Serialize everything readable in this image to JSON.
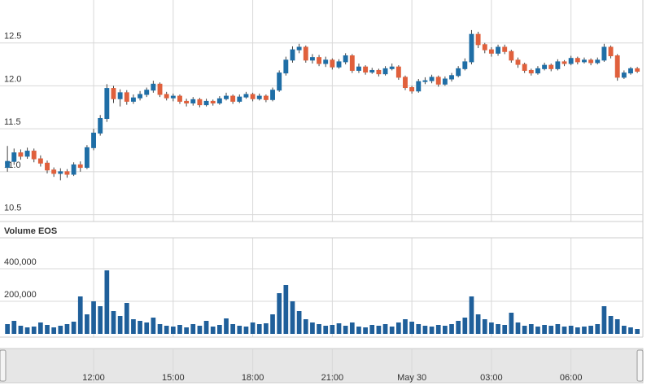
{
  "chart_data": {
    "type": "candlestick",
    "volume_title": "Volume EOS",
    "x": [
      8.75,
      9,
      9.25,
      9.5,
      9.75,
      10,
      10.25,
      10.5,
      10.75,
      11,
      11.25,
      11.5,
      11.75,
      12,
      12.25,
      12.5,
      12.75,
      13,
      13.25,
      13.5,
      13.75,
      14,
      14.25,
      14.5,
      14.75,
      15,
      15.25,
      15.5,
      15.75,
      16,
      16.25,
      16.5,
      16.75,
      17,
      17.25,
      17.5,
      17.75,
      18,
      18.25,
      18.5,
      18.75,
      19,
      19.25,
      19.5,
      19.75,
      20,
      20.25,
      20.5,
      20.75,
      21,
      21.25,
      21.5,
      21.75,
      22,
      22.25,
      22.5,
      22.75,
      23,
      23.25,
      23.5,
      23.75,
      24,
      24.25,
      24.5,
      24.75,
      25,
      25.25,
      25.5,
      25.75,
      26,
      26.25,
      26.5,
      26.75,
      27,
      27.25,
      27.5,
      27.75,
      28,
      28.25,
      28.5,
      28.75,
      29,
      29.25,
      29.5,
      29.75,
      30,
      30.25,
      30.5,
      30.75,
      31,
      31.25,
      31.5,
      31.75,
      32,
      32.25,
      32.5
    ],
    "open": [
      11.05,
      11.12,
      11.22,
      11.18,
      11.24,
      11.15,
      11.1,
      11.02,
      10.98,
      11.0,
      10.97,
      11.08,
      11.05,
      11.28,
      11.45,
      11.62,
      11.97,
      11.85,
      11.92,
      11.82,
      11.86,
      11.9,
      11.95,
      12.02,
      11.9,
      11.86,
      11.88,
      11.82,
      11.8,
      11.84,
      11.78,
      11.82,
      11.8,
      11.85,
      11.88,
      11.82,
      11.87,
      11.9,
      11.85,
      11.88,
      11.84,
      11.95,
      12.15,
      12.3,
      12.42,
      12.45,
      12.3,
      12.33,
      12.26,
      12.3,
      12.22,
      12.28,
      12.35,
      12.18,
      12.22,
      12.16,
      12.18,
      12.14,
      12.2,
      12.22,
      12.1,
      11.98,
      11.94,
      12.05,
      12.06,
      12.1,
      12.02,
      12.08,
      12.12,
      12.2,
      12.28,
      12.6,
      12.48,
      12.42,
      12.38,
      12.45,
      12.4,
      12.3,
      12.25,
      12.18,
      12.15,
      12.2,
      12.24,
      12.2,
      12.28,
      12.26,
      12.32,
      12.28,
      12.3,
      12.27,
      12.3,
      12.45,
      12.35,
      12.1,
      12.15,
      12.2
    ],
    "high": [
      11.3,
      11.27,
      11.26,
      11.28,
      11.27,
      11.19,
      11.13,
      11.05,
      11.04,
      11.03,
      11.11,
      11.12,
      11.31,
      11.5,
      11.66,
      12.02,
      12.0,
      11.96,
      11.95,
      11.9,
      11.94,
      11.98,
      12.06,
      12.04,
      11.93,
      11.91,
      11.9,
      11.85,
      11.87,
      11.86,
      11.85,
      11.84,
      11.88,
      11.92,
      11.9,
      11.9,
      11.93,
      11.92,
      11.91,
      11.9,
      11.98,
      12.18,
      12.34,
      12.46,
      12.49,
      12.47,
      12.37,
      12.36,
      12.34,
      12.32,
      12.31,
      12.38,
      12.37,
      12.26,
      12.24,
      12.21,
      12.2,
      12.23,
      12.26,
      12.24,
      12.12,
      12.0,
      12.08,
      12.1,
      12.13,
      12.12,
      12.11,
      12.15,
      12.23,
      12.32,
      12.65,
      12.63,
      12.5,
      12.45,
      12.48,
      12.48,
      12.42,
      12.33,
      12.27,
      12.2,
      12.23,
      12.27,
      12.26,
      12.31,
      12.3,
      12.35,
      12.34,
      12.33,
      12.32,
      12.33,
      12.49,
      12.47,
      12.37,
      12.18,
      12.22,
      12.22
    ],
    "low": [
      11.0,
      11.08,
      11.14,
      11.15,
      11.11,
      11.06,
      10.98,
      10.94,
      10.9,
      10.93,
      10.95,
      11.0,
      11.03,
      11.25,
      11.42,
      11.58,
      11.8,
      11.76,
      11.78,
      11.79,
      11.83,
      11.87,
      11.92,
      11.87,
      11.83,
      11.82,
      11.79,
      11.76,
      11.77,
      11.75,
      11.76,
      11.77,
      11.78,
      11.83,
      11.79,
      11.8,
      11.85,
      11.82,
      11.83,
      11.81,
      11.82,
      11.93,
      12.12,
      12.27,
      12.38,
      12.27,
      12.26,
      12.23,
      12.22,
      12.19,
      12.2,
      12.25,
      12.15,
      12.15,
      12.13,
      12.14,
      12.11,
      12.12,
      12.18,
      12.07,
      11.95,
      11.91,
      11.92,
      12.02,
      12.03,
      11.99,
      12.0,
      12.05,
      12.1,
      12.18,
      12.25,
      12.44,
      12.38,
      12.34,
      12.35,
      12.37,
      12.27,
      12.21,
      12.15,
      12.12,
      12.13,
      12.18,
      12.17,
      12.18,
      12.23,
      12.24,
      12.25,
      12.26,
      12.24,
      12.25,
      12.28,
      12.32,
      12.06,
      12.08,
      12.13,
      12.15
    ],
    "close": [
      11.12,
      11.22,
      11.18,
      11.24,
      11.15,
      11.1,
      11.02,
      10.98,
      11.0,
      10.97,
      11.08,
      11.05,
      11.28,
      11.45,
      11.62,
      11.97,
      11.85,
      11.92,
      11.82,
      11.86,
      11.9,
      11.95,
      12.02,
      11.9,
      11.86,
      11.88,
      11.82,
      11.8,
      11.84,
      11.78,
      11.82,
      11.8,
      11.85,
      11.88,
      11.82,
      11.87,
      11.9,
      11.85,
      11.88,
      11.84,
      11.95,
      12.15,
      12.3,
      12.42,
      12.45,
      12.3,
      12.33,
      12.26,
      12.3,
      12.22,
      12.28,
      12.35,
      12.18,
      12.22,
      12.16,
      12.18,
      12.14,
      12.2,
      12.22,
      12.1,
      11.98,
      11.94,
      12.05,
      12.06,
      12.1,
      12.02,
      12.08,
      12.12,
      12.2,
      12.28,
      12.6,
      12.48,
      12.42,
      12.38,
      12.45,
      12.4,
      12.3,
      12.25,
      12.18,
      12.15,
      12.2,
      12.24,
      12.2,
      12.28,
      12.26,
      12.32,
      12.28,
      12.3,
      12.27,
      12.3,
      12.45,
      12.35,
      12.1,
      12.15,
      12.2,
      12.17
    ],
    "volume": [
      60000,
      80000,
      50000,
      40000,
      45000,
      70000,
      55000,
      40000,
      50000,
      60000,
      75000,
      230000,
      120000,
      200000,
      170000,
      390000,
      140000,
      110000,
      190000,
      90000,
      80000,
      70000,
      100000,
      60000,
      50000,
      45000,
      55000,
      40000,
      60000,
      50000,
      80000,
      45000,
      55000,
      95000,
      60000,
      50000,
      45000,
      70000,
      60000,
      65000,
      120000,
      250000,
      300000,
      200000,
      140000,
      90000,
      70000,
      60000,
      50000,
      55000,
      65000,
      50000,
      70000,
      45000,
      40000,
      55000,
      50000,
      60000,
      45000,
      70000,
      90000,
      75000,
      60000,
      50000,
      45000,
      55000,
      50000,
      60000,
      80000,
      100000,
      230000,
      120000,
      90000,
      70000,
      60000,
      55000,
      130000,
      70000,
      50000,
      60000,
      45000,
      55000,
      50000,
      60000,
      45000,
      50000,
      40000,
      45000,
      50000,
      60000,
      170000,
      110000,
      90000,
      50000,
      40000,
      30000
    ],
    "up_color": "#1f6ea6",
    "down_color": "#e0603c",
    "volume_color": "#1f5f9a",
    "xlim": [
      8.47,
      32.71
    ],
    "xticks": [
      {
        "value": 12,
        "label": "12:00"
      },
      {
        "value": 15,
        "label": "15:00"
      },
      {
        "value": 18,
        "label": "18:00"
      },
      {
        "value": 21,
        "label": "21:00"
      },
      {
        "value": 24,
        "label": "May 30"
      },
      {
        "value": 27,
        "label": "03:00"
      },
      {
        "value": 30,
        "label": "06:00"
      }
    ],
    "ylim": [
      10.42,
      13.0
    ],
    "yticks": [
      12.5,
      {
        "value": 12,
        "label": "12.0"
      },
      11.5,
      {
        "value": 11,
        "label": "11.0"
      },
      10.5
    ],
    "volume_ylim": [
      0,
      590000
    ],
    "volume_yticks": [
      {
        "value": 200000,
        "label": "200,000"
      },
      {
        "value": 400000,
        "label": "400,000"
      }
    ],
    "grid": true
  }
}
